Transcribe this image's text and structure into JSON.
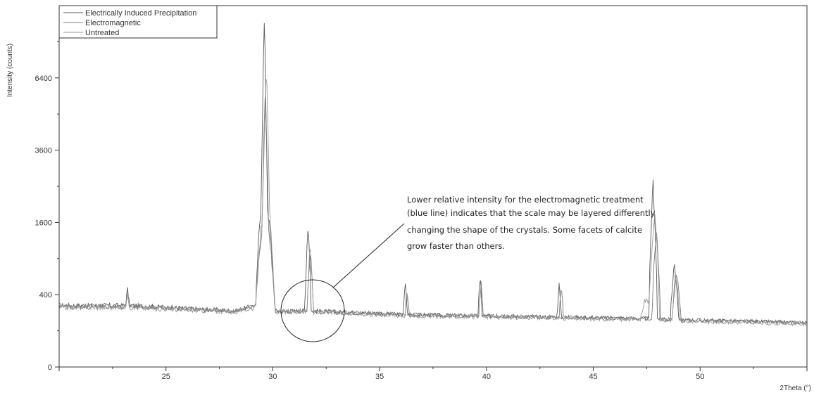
{
  "chart_data": {
    "type": "line",
    "xlabel": "2Theta (°)",
    "ylabel": "Intensity (counts)",
    "xlim": [
      20,
      55
    ],
    "ylim": [
      0,
      10000
    ],
    "y_scale": "sqrt",
    "x_ticks": [
      25,
      30,
      35,
      40,
      45,
      50
    ],
    "y_ticks": [
      0,
      400,
      1600,
      3600,
      6400
    ],
    "x_tick_labels": [
      "25",
      "30",
      "35",
      "40",
      "45",
      "50"
    ],
    "y_tick_labels": [
      "0",
      "400",
      "1600",
      "3600",
      "6400"
    ],
    "legend": {
      "placement": "top-left",
      "entries": [
        "Electrically Induced Precipitation",
        "Electromagnetic",
        "Untreated"
      ]
    },
    "series": [
      {
        "name": "Electrically Induced Precipitation",
        "color": "#5a5a5a",
        "points": [
          [
            20,
            290
          ],
          [
            23.1,
            290
          ],
          [
            23.2,
            460
          ],
          [
            23.3,
            290
          ],
          [
            28.2,
            240
          ],
          [
            29.2,
            290
          ],
          [
            29.45,
            2000
          ],
          [
            29.6,
            9000
          ],
          [
            29.75,
            2000
          ],
          [
            30.1,
            240
          ],
          [
            31.5,
            240
          ],
          [
            31.65,
            1600
          ],
          [
            31.8,
            240
          ],
          [
            36.1,
            210
          ],
          [
            36.2,
            520
          ],
          [
            36.3,
            210
          ],
          [
            39.6,
            200
          ],
          [
            39.7,
            630
          ],
          [
            39.8,
            200
          ],
          [
            43.3,
            190
          ],
          [
            43.4,
            520
          ],
          [
            43.5,
            190
          ],
          [
            47.6,
            180
          ],
          [
            47.8,
            2600
          ],
          [
            48.0,
            180
          ],
          [
            48.6,
            170
          ],
          [
            48.8,
            820
          ],
          [
            49.0,
            170
          ],
          [
            55,
            150
          ]
        ]
      },
      {
        "name": "Electromagnetic",
        "color": "#7a7a7a",
        "points": [
          [
            20,
            280
          ],
          [
            23.1,
            280
          ],
          [
            23.2,
            400
          ],
          [
            23.3,
            280
          ],
          [
            28.2,
            240
          ],
          [
            29.2,
            280
          ],
          [
            29.5,
            1500
          ],
          [
            29.65,
            5800
          ],
          [
            29.8,
            1500
          ],
          [
            30.1,
            240
          ],
          [
            31.6,
            240
          ],
          [
            31.75,
            1050
          ],
          [
            31.9,
            240
          ],
          [
            36.2,
            210
          ],
          [
            36.25,
            460
          ],
          [
            36.4,
            210
          ],
          [
            39.65,
            200
          ],
          [
            39.75,
            560
          ],
          [
            39.85,
            200
          ],
          [
            43.4,
            190
          ],
          [
            43.5,
            500
          ],
          [
            43.6,
            190
          ],
          [
            47.75,
            180
          ],
          [
            47.95,
            1450
          ],
          [
            48.15,
            180
          ],
          [
            48.7,
            170
          ],
          [
            48.9,
            720
          ],
          [
            49.1,
            170
          ],
          [
            55,
            150
          ]
        ]
      },
      {
        "name": "Untreated",
        "color": "#999999",
        "points": [
          [
            20,
            270
          ],
          [
            23.1,
            270
          ],
          [
            23.2,
            410
          ],
          [
            23.3,
            270
          ],
          [
            28.2,
            230
          ],
          [
            29.2,
            270
          ],
          [
            29.5,
            1700
          ],
          [
            29.7,
            6500
          ],
          [
            29.85,
            1700
          ],
          [
            30.1,
            230
          ],
          [
            31.6,
            230
          ],
          [
            31.75,
            1150
          ],
          [
            31.9,
            230
          ],
          [
            36.2,
            200
          ],
          [
            36.25,
            470
          ],
          [
            36.4,
            200
          ],
          [
            39.65,
            190
          ],
          [
            39.75,
            580
          ],
          [
            39.85,
            190
          ],
          [
            47.2,
            170
          ],
          [
            47.4,
            340
          ],
          [
            47.6,
            340
          ],
          [
            47.9,
            1800
          ],
          [
            48.1,
            170
          ],
          [
            48.7,
            160
          ],
          [
            48.85,
            700
          ],
          [
            49.05,
            160
          ],
          [
            55,
            140
          ]
        ]
      }
    ],
    "annotations": [
      {
        "lines": [
          "Lower relative intensity for the electromagnetic treatment",
          "(blue line) indicates that the scale may be layered differently",
          "changing the shape of the crystals. Some facets of calcite",
          "grow faster than others."
        ]
      }
    ]
  }
}
